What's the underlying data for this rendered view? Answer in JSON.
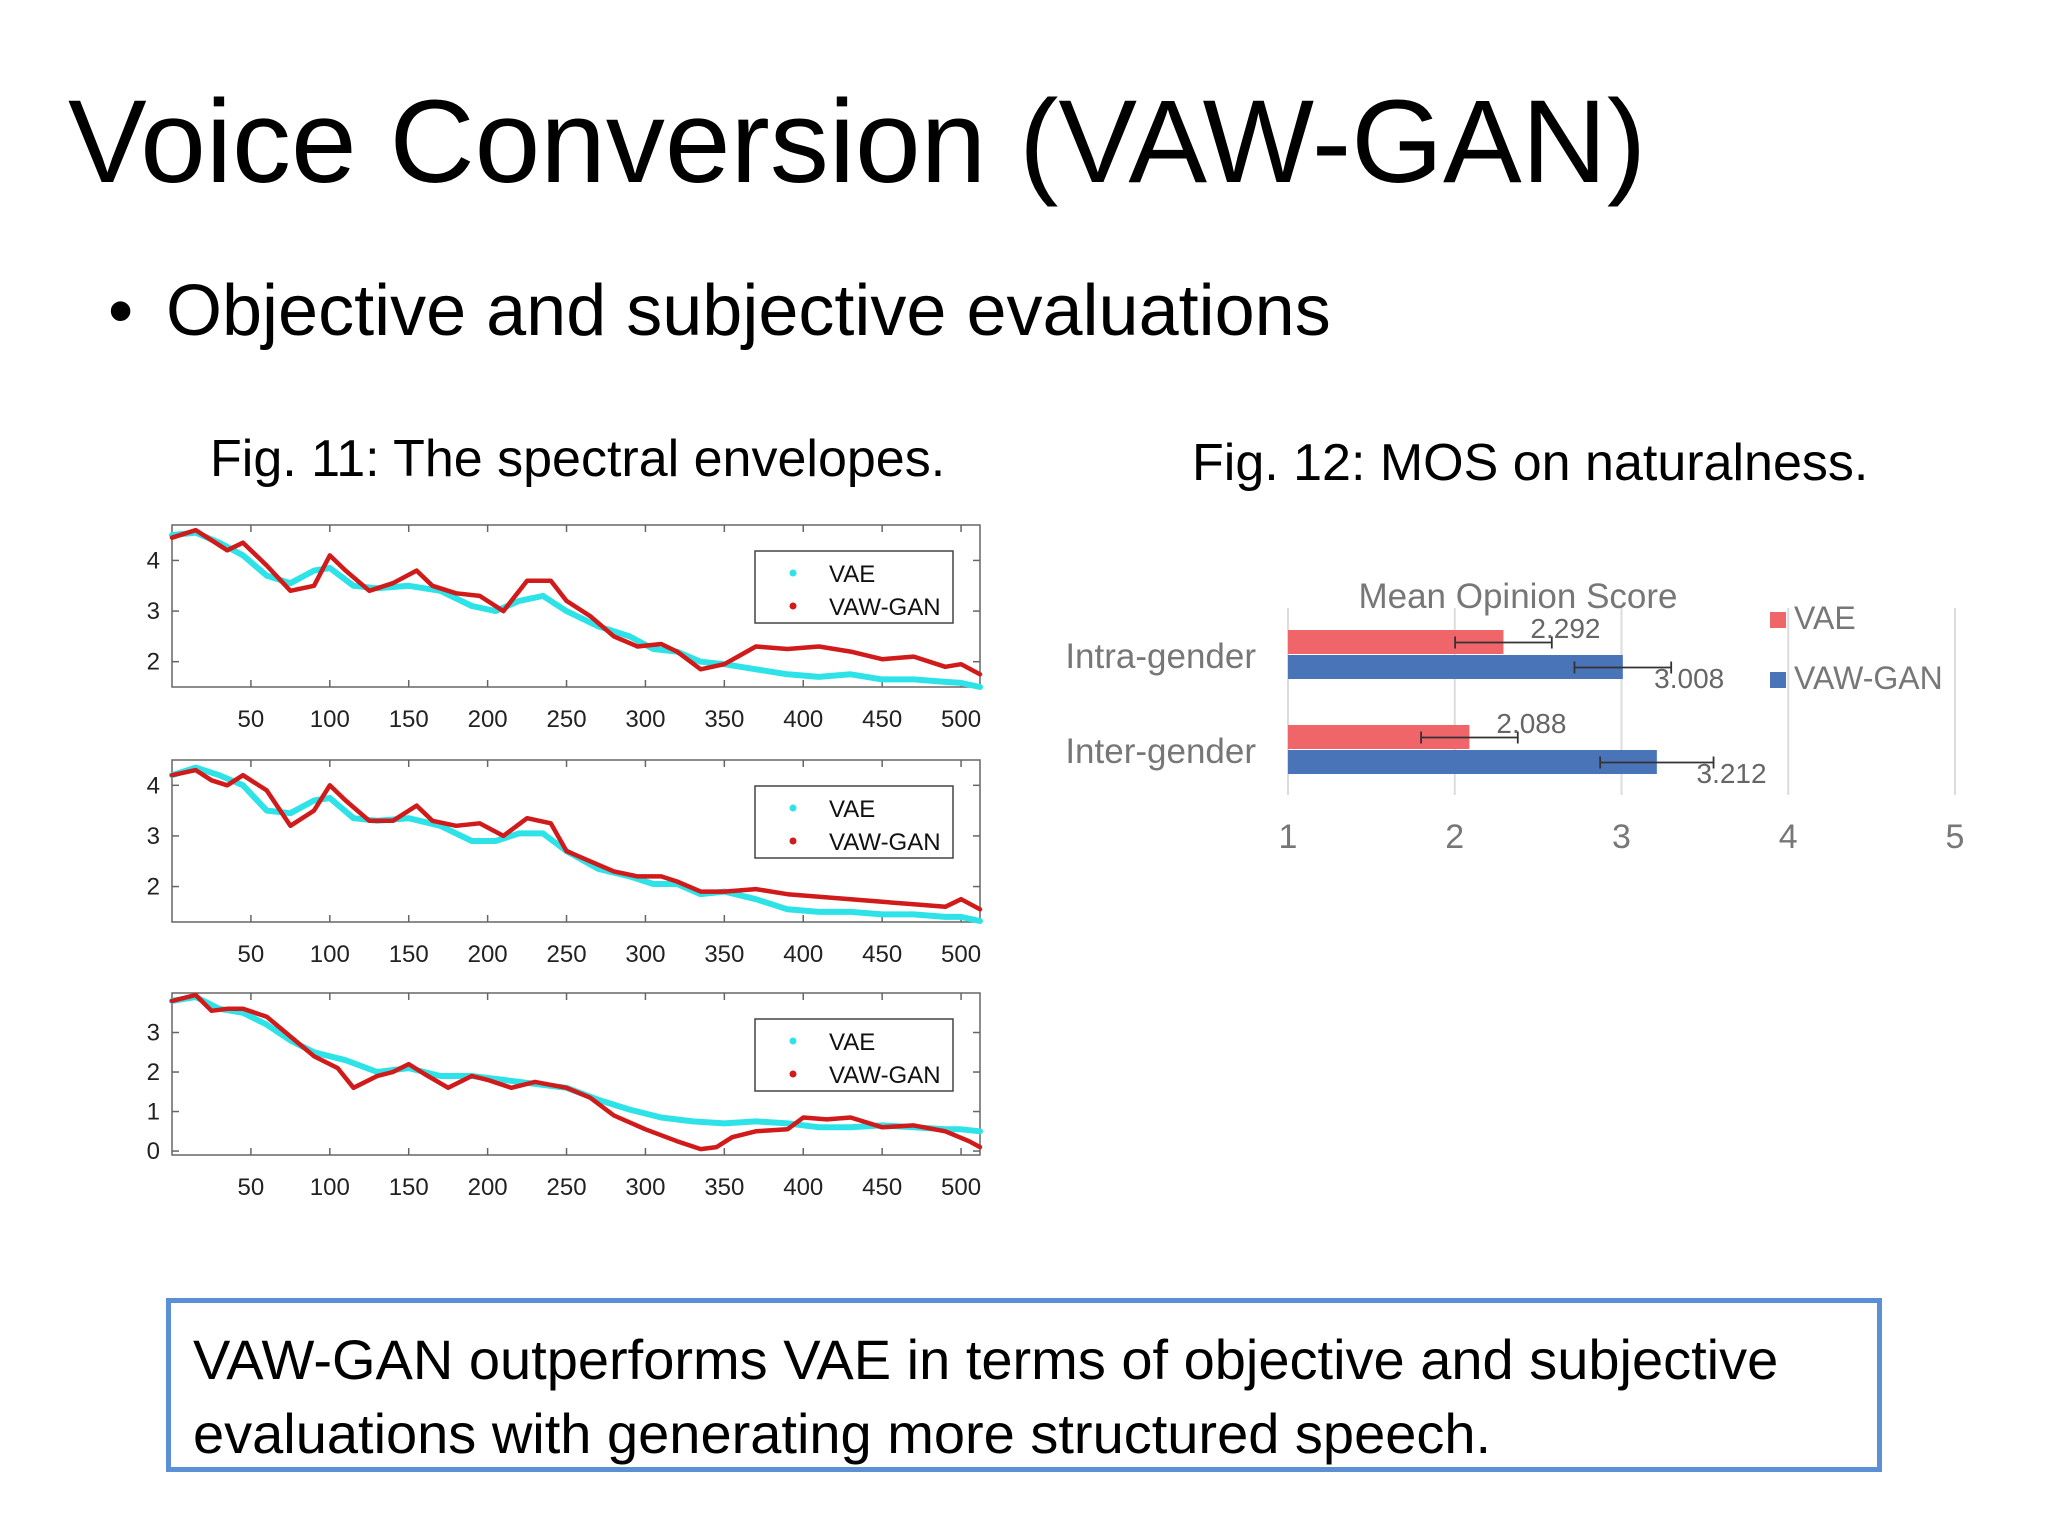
{
  "slide": {
    "title": "Voice Conversion (VAW-GAN)",
    "bullet": "Objective and subjective evaluations",
    "fig11_caption": "Fig. 11: The spectral envelopes.",
    "fig12_caption": "Fig. 12: MOS on naturalness.",
    "conclusion": "VAW-GAN outperforms VAE in terms of objective and subjective evaluations with generating more structured speech."
  },
  "colors": {
    "vae": "#2ee3e8",
    "vawgan": "#d11a1a",
    "bar_vae": "#f0656a",
    "bar_vawgan": "#4a74b8",
    "box_border": "#5b8fd6"
  },
  "chart_data": [
    {
      "type": "line",
      "title": "",
      "xlabel": "",
      "ylabel": "",
      "xlim": [
        0,
        512
      ],
      "ylim": [
        1.5,
        4.7
      ],
      "xticks": [
        50,
        100,
        150,
        200,
        250,
        300,
        350,
        400,
        450,
        500
      ],
      "yticks": [
        2,
        3,
        4
      ],
      "legend": {
        "position": "top-right",
        "entries": [
          "VAE",
          "VAW-GAN"
        ]
      },
      "series": [
        {
          "name": "VAE",
          "x": [
            0,
            15,
            30,
            45,
            60,
            75,
            90,
            100,
            115,
            130,
            150,
            170,
            190,
            205,
            220,
            235,
            250,
            270,
            290,
            305,
            320,
            335,
            350,
            370,
            390,
            410,
            430,
            450,
            470,
            490,
            500,
            512
          ],
          "values": [
            4.5,
            4.55,
            4.35,
            4.1,
            3.7,
            3.55,
            3.8,
            3.85,
            3.5,
            3.45,
            3.5,
            3.4,
            3.1,
            3.0,
            3.2,
            3.3,
            3.0,
            2.7,
            2.5,
            2.25,
            2.2,
            2.0,
            1.95,
            1.85,
            1.75,
            1.7,
            1.75,
            1.65,
            1.65,
            1.6,
            1.58,
            1.5
          ]
        },
        {
          "name": "VAW-GAN",
          "x": [
            0,
            15,
            25,
            35,
            45,
            60,
            75,
            90,
            100,
            110,
            125,
            140,
            155,
            165,
            180,
            195,
            210,
            225,
            240,
            250,
            265,
            280,
            295,
            310,
            320,
            335,
            350,
            370,
            390,
            410,
            430,
            450,
            470,
            490,
            500,
            512
          ],
          "values": [
            4.45,
            4.6,
            4.4,
            4.2,
            4.35,
            3.9,
            3.4,
            3.5,
            4.1,
            3.8,
            3.4,
            3.55,
            3.8,
            3.5,
            3.35,
            3.3,
            3.0,
            3.6,
            3.6,
            3.2,
            2.9,
            2.5,
            2.3,
            2.35,
            2.2,
            1.85,
            1.95,
            2.3,
            2.25,
            2.3,
            2.2,
            2.05,
            2.1,
            1.9,
            1.95,
            1.75
          ]
        }
      ]
    },
    {
      "type": "line",
      "title": "",
      "xlabel": "",
      "ylabel": "",
      "xlim": [
        0,
        512
      ],
      "ylim": [
        1.3,
        4.5
      ],
      "xticks": [
        50,
        100,
        150,
        200,
        250,
        300,
        350,
        400,
        450,
        500
      ],
      "yticks": [
        2,
        3,
        4
      ],
      "legend": {
        "position": "top-right",
        "entries": [
          "VAE",
          "VAW-GAN"
        ]
      },
      "series": [
        {
          "name": "VAE",
          "x": [
            0,
            15,
            30,
            45,
            60,
            75,
            90,
            100,
            115,
            130,
            150,
            170,
            190,
            205,
            220,
            235,
            250,
            270,
            290,
            305,
            320,
            335,
            350,
            370,
            390,
            410,
            430,
            450,
            470,
            490,
            500,
            512
          ],
          "values": [
            4.2,
            4.35,
            4.2,
            4.0,
            3.5,
            3.45,
            3.7,
            3.75,
            3.35,
            3.3,
            3.35,
            3.2,
            2.9,
            2.9,
            3.05,
            3.05,
            2.7,
            2.35,
            2.2,
            2.05,
            2.05,
            1.85,
            1.9,
            1.75,
            1.55,
            1.5,
            1.5,
            1.45,
            1.45,
            1.4,
            1.4,
            1.32
          ]
        },
        {
          "name": "VAW-GAN",
          "x": [
            0,
            15,
            25,
            35,
            45,
            60,
            75,
            90,
            100,
            110,
            125,
            140,
            155,
            165,
            180,
            195,
            210,
            225,
            240,
            250,
            265,
            280,
            295,
            310,
            320,
            335,
            350,
            370,
            390,
            410,
            430,
            450,
            470,
            490,
            500,
            512
          ],
          "values": [
            4.2,
            4.3,
            4.1,
            4.0,
            4.2,
            3.9,
            3.2,
            3.5,
            4.0,
            3.7,
            3.3,
            3.3,
            3.6,
            3.3,
            3.2,
            3.25,
            3.0,
            3.35,
            3.25,
            2.7,
            2.5,
            2.3,
            2.2,
            2.2,
            2.1,
            1.9,
            1.9,
            1.95,
            1.85,
            1.8,
            1.75,
            1.7,
            1.65,
            1.6,
            1.75,
            1.55
          ]
        }
      ]
    },
    {
      "type": "line",
      "title": "",
      "xlabel": "",
      "ylabel": "",
      "xlim": [
        0,
        512
      ],
      "ylim": [
        -0.1,
        4.0
      ],
      "xticks": [
        50,
        100,
        150,
        200,
        250,
        300,
        350,
        400,
        450,
        500
      ],
      "yticks": [
        0,
        1,
        2,
        3
      ],
      "legend": {
        "position": "top-right",
        "entries": [
          "VAE",
          "VAW-GAN"
        ]
      },
      "series": [
        {
          "name": "VAE",
          "x": [
            0,
            15,
            30,
            45,
            60,
            75,
            90,
            110,
            130,
            150,
            170,
            190,
            210,
            230,
            250,
            270,
            290,
            310,
            330,
            350,
            370,
            390,
            410,
            430,
            450,
            470,
            490,
            500,
            512
          ],
          "values": [
            3.8,
            3.9,
            3.6,
            3.5,
            3.2,
            2.8,
            2.5,
            2.3,
            2.0,
            2.1,
            1.9,
            1.9,
            1.8,
            1.7,
            1.6,
            1.3,
            1.05,
            0.85,
            0.75,
            0.7,
            0.75,
            0.7,
            0.6,
            0.6,
            0.65,
            0.6,
            0.55,
            0.55,
            0.5
          ]
        },
        {
          "name": "VAW-GAN",
          "x": [
            0,
            15,
            25,
            35,
            45,
            60,
            75,
            90,
            105,
            115,
            130,
            140,
            150,
            160,
            175,
            190,
            200,
            215,
            230,
            250,
            265,
            280,
            300,
            320,
            335,
            345,
            355,
            370,
            390,
            400,
            415,
            430,
            450,
            470,
            490,
            505,
            512
          ],
          "values": [
            3.8,
            3.95,
            3.55,
            3.6,
            3.6,
            3.4,
            2.9,
            2.4,
            2.1,
            1.6,
            1.9,
            2.0,
            2.2,
            1.95,
            1.6,
            1.9,
            1.8,
            1.6,
            1.75,
            1.6,
            1.35,
            0.9,
            0.55,
            0.25,
            0.05,
            0.1,
            0.35,
            0.5,
            0.55,
            0.85,
            0.8,
            0.85,
            0.6,
            0.65,
            0.5,
            0.25,
            0.1
          ]
        }
      ]
    },
    {
      "type": "bar",
      "orientation": "horizontal",
      "title": "Mean Opinion Score",
      "categories": [
        "Intra-gender",
        "Inter-gender"
      ],
      "xlim": [
        1,
        5
      ],
      "xticks": [
        1,
        2,
        3,
        4,
        5
      ],
      "legend": {
        "position": "right",
        "entries": [
          "VAE",
          "VAW-GAN"
        ]
      },
      "series": [
        {
          "name": "VAE",
          "values": [
            2.292,
            2.088
          ],
          "errors": [
            0.29,
            0.29
          ]
        },
        {
          "name": "VAW-GAN",
          "values": [
            3.008,
            3.212
          ],
          "errors": [
            0.29,
            0.34
          ]
        }
      ],
      "value_labels": [
        "2.292",
        "3.008",
        "2.088",
        "3.212"
      ]
    }
  ]
}
